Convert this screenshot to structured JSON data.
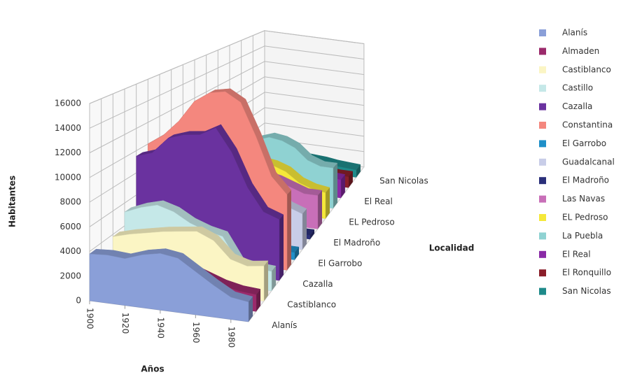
{
  "chart_data": {
    "type": "area3d",
    "x_label": "Años",
    "y_label": "Habitantes",
    "z_label": "Localidad",
    "x": [
      1900,
      1910,
      1920,
      1930,
      1940,
      1950,
      1960,
      1970,
      1980,
      1990
    ],
    "xlim": [
      1900,
      1990
    ],
    "xticks": [
      1900,
      1920,
      1940,
      1960,
      1980
    ],
    "ylim": [
      0,
      16000
    ],
    "yticks": [
      0,
      2000,
      4000,
      6000,
      8000,
      10000,
      12000,
      14000,
      16000
    ],
    "grid": true,
    "series": [
      {
        "name": "Alanís",
        "color": "#8a9fd8",
        "values": [
          3800,
          3900,
          3800,
          4300,
          4600,
          4400,
          3500,
          2600,
          1800,
          1600
        ]
      },
      {
        "name": "Almaden",
        "color": "#9b2a6b",
        "values": [
          2000,
          2200,
          2400,
          3000,
          3200,
          2800,
          2300,
          1800,
          1500,
          1400
        ]
      },
      {
        "name": "Castiblanco",
        "color": "#fbf5c4",
        "values": [
          3800,
          4200,
          4500,
          4800,
          5000,
          5200,
          4600,
          3200,
          2800,
          3000
        ]
      },
      {
        "name": "Castillo",
        "color": "#c5e8e8",
        "values": [
          5200,
          5800,
          6200,
          5800,
          5000,
          4500,
          4200,
          2000,
          1800,
          1700
        ]
      },
      {
        "name": "Cazalla",
        "color": "#6a329f",
        "values": [
          9500,
          10000,
          11500,
          12000,
          12200,
          13000,
          11000,
          8000,
          6000,
          5500
        ]
      },
      {
        "name": "Constantina",
        "color": "#f4877e",
        "values": [
          10000,
          11000,
          12500,
          14500,
          15500,
          15800,
          15000,
          12000,
          8500,
          7000
        ]
      },
      {
        "name": "El Garrobo",
        "color": "#1e8fc8",
        "values": [
          800,
          900,
          1000,
          1100,
          1100,
          1000,
          900,
          800,
          700,
          700
        ]
      },
      {
        "name": "Guadalcanal",
        "color": "#c8cde8",
        "values": [
          6000,
          6200,
          6500,
          7000,
          7500,
          7500,
          7000,
          5500,
          4000,
          3500
        ]
      },
      {
        "name": "El Madroño",
        "color": "#2a2f7a",
        "values": [
          600,
          700,
          800,
          900,
          900,
          800,
          700,
          500,
          400,
          400
        ]
      },
      {
        "name": "Las Navas",
        "color": "#c86fb8",
        "values": [
          4000,
          4300,
          4500,
          4800,
          5000,
          4800,
          4500,
          4000,
          3500,
          3500
        ]
      },
      {
        "name": "EL Pedroso",
        "color": "#f5e83a",
        "values": [
          4500,
          4800,
          5000,
          5300,
          5200,
          5000,
          4500,
          3500,
          3000,
          2800
        ]
      },
      {
        "name": "La Puebla",
        "color": "#8fd2d2",
        "values": [
          5000,
          5500,
          6000,
          6500,
          7000,
          6800,
          6200,
          5000,
          4500,
          4500
        ]
      },
      {
        "name": "El Real",
        "color": "#8a2aa6",
        "values": [
          2500,
          2700,
          2900,
          3000,
          3100,
          3000,
          2700,
          2400,
          2200,
          2100
        ]
      },
      {
        "name": "El Ronquillo",
        "color": "#8a1e2a",
        "values": [
          1500,
          1600,
          1700,
          1800,
          1800,
          1700,
          1500,
          1400,
          1300,
          1300
        ]
      },
      {
        "name": "San Nicolas",
        "color": "#1e8a8a",
        "values": [
          1200,
          1300,
          1400,
          1500,
          1500,
          1400,
          1300,
          1100,
          1000,
          900
        ]
      }
    ]
  }
}
